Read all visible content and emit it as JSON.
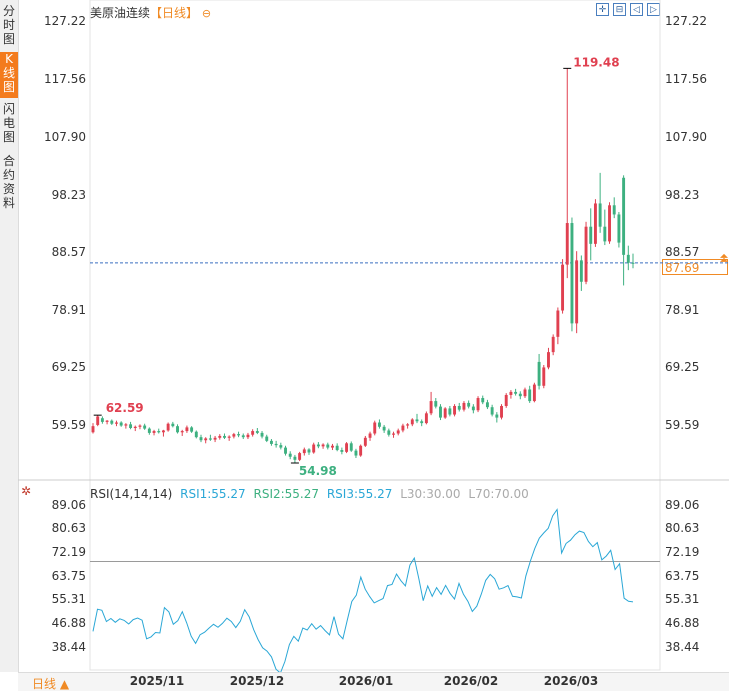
{
  "sidebar": {
    "tabs": [
      {
        "label": "分时图",
        "active": false
      },
      {
        "label": "K线图",
        "active": true
      },
      {
        "label": "闪电图",
        "active": false
      },
      {
        "label": "合约资料",
        "active": false
      }
    ]
  },
  "header": {
    "title": "美原油连续",
    "period": "【日线】",
    "toggle_icon": "minus-circle-icon"
  },
  "toolbar": {
    "buttons": [
      {
        "name": "zoom-in-button",
        "glyph": "✛"
      },
      {
        "name": "zoom-out-button",
        "glyph": "⊟"
      },
      {
        "name": "scroll-left-button",
        "glyph": "◁"
      },
      {
        "name": "scroll-right-button",
        "glyph": "▷"
      }
    ]
  },
  "price_axis": {
    "labels": [
      "127.22",
      "117.56",
      "107.90",
      "98.23",
      "88.57",
      "78.91",
      "69.25",
      "59.59"
    ]
  },
  "rsi_axis": {
    "labels": [
      "89.06",
      "80.63",
      "72.19",
      "63.75",
      "55.31",
      "46.88",
      "38.44"
    ]
  },
  "last_price": "87.69",
  "annotations": {
    "high": "119.48",
    "low": "54.98",
    "start": "62.59"
  },
  "rsi_header": {
    "title": "RSI(14,14,14)",
    "rsi1": "RSI1:55.27",
    "rsi2": "RSI2:55.27",
    "rsi3": "RSI3:55.27",
    "l30": "L30:30.00",
    "l70": "L70:70.00"
  },
  "colors": {
    "up": "#e04050",
    "down": "#3db080",
    "rsi": "#2aa7d6",
    "accent": "#f08a24",
    "dash": "#3b6fc0"
  },
  "bottom": {
    "period_selector": "日线 ▲"
  },
  "chart_data": {
    "type": "candlestick",
    "title": "美原油连续【日线】",
    "price_range": [
      54.0,
      127.22
    ],
    "x_ticks": [
      "2025/11",
      "2025/12",
      "2026/01",
      "2026/02",
      "2026/03"
    ],
    "ohlc": [
      [
        60.0,
        61.5,
        59.8,
        61.0
      ],
      [
        61.2,
        62.8,
        61.0,
        62.59
      ],
      [
        62.3,
        62.6,
        61.4,
        61.7
      ],
      [
        61.7,
        62.0,
        61.3,
        61.9
      ],
      [
        61.9,
        62.1,
        61.2,
        61.4
      ],
      [
        61.4,
        61.9,
        61.0,
        61.6
      ],
      [
        61.6,
        61.8,
        60.9,
        61.1
      ],
      [
        61.1,
        61.5,
        60.6,
        61.3
      ],
      [
        61.3,
        61.7,
        60.5,
        60.7
      ],
      [
        60.7,
        61.1,
        60.2,
        60.9
      ],
      [
        60.9,
        61.3,
        60.5,
        61.1
      ],
      [
        61.1,
        61.4,
        60.4,
        60.6
      ],
      [
        60.6,
        60.8,
        59.6,
        59.9
      ],
      [
        59.9,
        60.4,
        59.5,
        60.2
      ],
      [
        60.2,
        60.6,
        59.8,
        60.0
      ],
      [
        60.0,
        60.4,
        59.3,
        60.3
      ],
      [
        60.3,
        61.6,
        60.1,
        61.4
      ],
      [
        61.4,
        61.7,
        60.8,
        61.0
      ],
      [
        61.0,
        61.3,
        59.8,
        60.0
      ],
      [
        60.0,
        60.4,
        59.4,
        60.2
      ],
      [
        60.2,
        61.1,
        59.9,
        60.8
      ],
      [
        60.8,
        61.0,
        59.9,
        60.1
      ],
      [
        60.1,
        60.3,
        59.0,
        59.2
      ],
      [
        59.2,
        59.6,
        58.4,
        58.7
      ],
      [
        58.7,
        59.2,
        58.2,
        59.0
      ],
      [
        59.0,
        59.6,
        58.6,
        58.8
      ],
      [
        58.8,
        59.4,
        58.4,
        59.1
      ],
      [
        59.1,
        59.7,
        58.8,
        59.4
      ],
      [
        59.4,
        59.8,
        58.9,
        59.1
      ],
      [
        59.1,
        59.5,
        58.6,
        59.3
      ],
      [
        59.3,
        59.9,
        59.0,
        59.7
      ],
      [
        59.7,
        60.1,
        59.2,
        59.5
      ],
      [
        59.5,
        59.8,
        58.9,
        59.2
      ],
      [
        59.2,
        59.9,
        58.9,
        59.6
      ],
      [
        59.6,
        60.5,
        59.3,
        60.2
      ],
      [
        60.2,
        60.7,
        59.7,
        59.9
      ],
      [
        59.9,
        60.2,
        59.0,
        59.3
      ],
      [
        59.3,
        59.6,
        58.4,
        58.6
      ],
      [
        58.6,
        58.9,
        57.8,
        58.1
      ],
      [
        58.1,
        58.6,
        57.5,
        57.9
      ],
      [
        57.9,
        58.3,
        57.2,
        57.5
      ],
      [
        57.5,
        57.8,
        56.2,
        56.5
      ],
      [
        56.5,
        56.9,
        55.6,
        56.0
      ],
      [
        56.0,
        56.3,
        54.98,
        55.5
      ],
      [
        55.5,
        56.8,
        55.3,
        56.6
      ],
      [
        56.6,
        57.5,
        56.2,
        57.2
      ],
      [
        57.2,
        57.4,
        56.3,
        56.7
      ],
      [
        56.7,
        58.3,
        56.5,
        58.0
      ],
      [
        58.0,
        58.4,
        57.4,
        57.7
      ],
      [
        57.7,
        58.2,
        57.3,
        58.0
      ],
      [
        58.0,
        58.3,
        57.2,
        57.5
      ],
      [
        57.5,
        58.1,
        57.1,
        57.8
      ],
      [
        57.8,
        58.2,
        56.9,
        57.1
      ],
      [
        57.1,
        57.5,
        56.4,
        56.8
      ],
      [
        56.8,
        58.4,
        56.6,
        58.2
      ],
      [
        58.2,
        58.5,
        56.8,
        57.0
      ],
      [
        57.0,
        57.3,
        55.8,
        56.2
      ],
      [
        56.2,
        58.0,
        56.0,
        57.8
      ],
      [
        57.8,
        59.4,
        57.6,
        59.1
      ],
      [
        59.1,
        60.1,
        58.6,
        59.8
      ],
      [
        59.8,
        61.9,
        59.5,
        61.6
      ],
      [
        61.6,
        62.1,
        60.6,
        60.9
      ],
      [
        60.9,
        61.2,
        59.9,
        60.3
      ],
      [
        60.3,
        60.6,
        59.3,
        59.6
      ],
      [
        59.6,
        60.1,
        59.1,
        59.8
      ],
      [
        59.8,
        60.6,
        59.5,
        60.3
      ],
      [
        60.3,
        61.4,
        60.0,
        61.1
      ],
      [
        61.1,
        61.5,
        60.6,
        61.3
      ],
      [
        61.3,
        62.3,
        61.0,
        62.1
      ],
      [
        62.1,
        63.0,
        61.5,
        61.8
      ],
      [
        61.8,
        62.1,
        61.0,
        61.5
      ],
      [
        61.5,
        63.4,
        61.3,
        63.1
      ],
      [
        63.1,
        66.6,
        62.8,
        65.1
      ],
      [
        65.1,
        65.6,
        63.9,
        64.2
      ],
      [
        64.2,
        64.6,
        62.0,
        62.4
      ],
      [
        62.4,
        64.1,
        62.2,
        63.9
      ],
      [
        63.9,
        64.3,
        62.6,
        62.9
      ],
      [
        62.9,
        64.6,
        62.6,
        64.3
      ],
      [
        64.3,
        64.8,
        63.4,
        63.7
      ],
      [
        63.7,
        65.1,
        63.4,
        64.8
      ],
      [
        64.8,
        65.2,
        63.9,
        64.2
      ],
      [
        64.2,
        64.6,
        63.1,
        63.6
      ],
      [
        63.6,
        65.9,
        63.3,
        65.6
      ],
      [
        65.6,
        66.0,
        64.6,
        64.9
      ],
      [
        64.9,
        65.3,
        63.8,
        64.1
      ],
      [
        64.1,
        64.5,
        62.6,
        62.9
      ],
      [
        62.9,
        63.3,
        61.6,
        62.4
      ],
      [
        62.4,
        64.6,
        62.1,
        64.3
      ],
      [
        64.3,
        66.4,
        64.0,
        66.1
      ],
      [
        66.1,
        66.9,
        65.5,
        66.6
      ],
      [
        66.6,
        67.1,
        66.0,
        66.3
      ],
      [
        66.3,
        66.7,
        65.4,
        65.9
      ],
      [
        65.9,
        67.3,
        65.6,
        67.0
      ],
      [
        67.0,
        67.6,
        64.8,
        65.1
      ],
      [
        65.1,
        68.1,
        64.9,
        67.8
      ],
      [
        71.5,
        72.8,
        67.0,
        67.6
      ],
      [
        67.6,
        71.0,
        67.2,
        70.6
      ],
      [
        70.6,
        73.8,
        70.3,
        73.1
      ],
      [
        73.1,
        76.0,
        72.6,
        75.6
      ],
      [
        75.6,
        80.4,
        74.4,
        79.9
      ],
      [
        79.9,
        88.3,
        79.4,
        87.4
      ],
      [
        87.4,
        119.48,
        85.2,
        94.2
      ],
      [
        94.2,
        95.1,
        76.5,
        77.8
      ],
      [
        77.8,
        89.6,
        76.2,
        88.1
      ],
      [
        88.1,
        88.9,
        83.1,
        84.6
      ],
      [
        84.6,
        94.4,
        84.2,
        93.6
      ],
      [
        93.6,
        96.6,
        88.1,
        90.8
      ],
      [
        90.8,
        98.1,
        90.3,
        97.4
      ],
      [
        97.4,
        102.4,
        92.6,
        93.6
      ],
      [
        93.6,
        96.4,
        90.6,
        91.2
      ],
      [
        91.2,
        97.6,
        90.8,
        97.1
      ],
      [
        97.1,
        98.4,
        95.0,
        95.6
      ],
      [
        95.6,
        96.0,
        90.2,
        91.0
      ],
      [
        101.6,
        102.0,
        84.0,
        89.0
      ],
      [
        89.0,
        90.5,
        86.5,
        87.7
      ],
      [
        87.7,
        89.2,
        86.8,
        87.69
      ]
    ],
    "rsi": [
      44.5,
      52.6,
      52.2,
      48.1,
      49.2,
      47.8,
      49.1,
      48.5,
      47.2,
      48.8,
      49.4,
      48.6,
      41.8,
      42.5,
      44.1,
      43.9,
      53.2,
      51.6,
      47.1,
      48.4,
      51.7,
      47.6,
      42.7,
      40.1,
      43.3,
      44.2,
      45.7,
      47.1,
      46.0,
      47.4,
      49.3,
      48.1,
      45.9,
      48.2,
      52.4,
      49.8,
      45.1,
      41.5,
      38.5,
      37.3,
      35.2,
      30.7,
      29.3,
      33.5,
      39.7,
      42.7,
      40.9,
      45.7,
      45.0,
      47.3,
      45.3,
      46.6,
      44.8,
      43.2,
      49.9,
      43.5,
      41.8,
      48.8,
      55.4,
      57.7,
      64.3,
      59.9,
      57.2,
      54.9,
      55.7,
      56.5,
      61.2,
      61.6,
      65.4,
      63.0,
      61.1,
      68.7,
      71.3,
      63.8,
      55.7,
      61.1,
      57.3,
      60.5,
      58.0,
      61.3,
      58.4,
      56.3,
      62.0,
      58.1,
      55.5,
      51.8,
      53.7,
      58.1,
      63.1,
      65.3,
      63.7,
      59.9,
      60.4,
      61.2,
      57.3,
      57.1,
      56.7,
      64.8,
      70.2,
      74.8,
      78.5,
      80.4,
      82.1,
      86.7,
      89.0,
      73.1,
      76.6,
      77.8,
      79.8,
      81.1,
      80.6,
      77.3,
      75.4,
      76.9,
      70.6,
      72.0,
      74.1,
      67.1,
      69.2,
      56.6,
      55.5,
      55.27
    ],
    "rsi_range": [
      31.5,
      91.0
    ],
    "rsi_levels": {
      "L30": 30.0,
      "L70": 70.0
    }
  }
}
